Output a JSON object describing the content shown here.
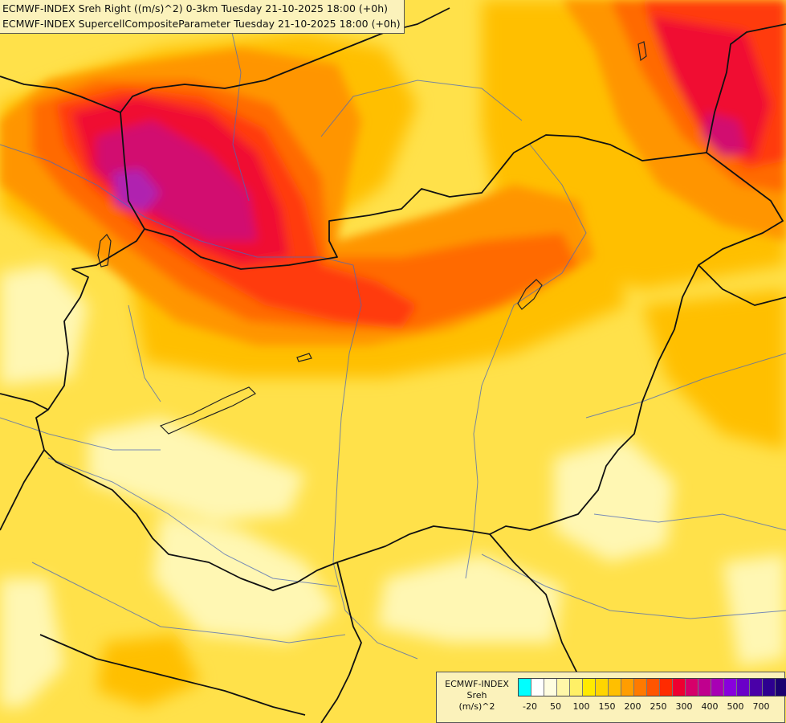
{
  "titles": {
    "line1": "ECMWF-INDEX Sreh Right ((m/s)^2) 0-3km Tuesday 21-10-2025 18:00 (+0h)",
    "line2": "ECMWF-INDEX SupercellCompositeParameter Tuesday 21-10-2025 18:00 (+0h)"
  },
  "legend": {
    "title_line1": "ECMWF-INDEX",
    "title_line2": "Sreh",
    "title_line3": "(m/s)^2",
    "colors": [
      "#00ffff",
      "#ffffff",
      "#fffde0",
      "#fff7a8",
      "#fff066",
      "#ffea00",
      "#ffd500",
      "#ffbf00",
      "#ff9d00",
      "#ff7a00",
      "#ff5500",
      "#ff2b00",
      "#ee0030",
      "#d6006a",
      "#c0008e",
      "#a800b4",
      "#8800dd",
      "#6a00c8",
      "#4a00a8",
      "#2d0090",
      "#1a0070"
    ],
    "ticks": [
      "-20",
      "50",
      "100",
      "150",
      "200",
      "250",
      "300",
      "400",
      "500",
      "700"
    ]
  },
  "field_colors": {
    "base": "#ffe14a",
    "pale": "#fff7b3",
    "yellow": "#ffd51a",
    "gold": "#ffbf00",
    "orange": "#ff9500",
    "dark_orange": "#ff6a00",
    "red_orange": "#ff3a10",
    "red": "#f01030",
    "magenta": "#d21070",
    "purple": "#b020b0"
  }
}
